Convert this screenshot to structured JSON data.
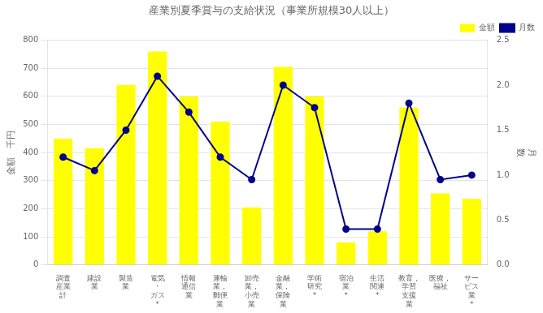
{
  "chart_data": {
    "type": "bar",
    "title": "産業別夏季賞与の支給状況（事業所規模30人以上）",
    "categories": [
      "調査\n産業\n計",
      "建設\n業",
      "製造\n業",
      "電気\n・\nガス\n*",
      "情報\n通信\n業",
      "運輸\n業，\n郵便\n業",
      "卸売\n業，\n小売\n業",
      "金融\n業，\n保険\n業",
      "学術\n研究\n*",
      "宿泊\n業\n*",
      "生活\n関連\n*",
      "教育，\n学習\n支援\n業",
      "医療，\n福祉",
      "サー\nビス\n業\n*"
    ],
    "series": [
      {
        "name": "金額",
        "type": "bar",
        "color": "#FFFF00",
        "values": [
          450,
          415,
          640,
          760,
          600,
          510,
          205,
          705,
          600,
          80,
          120,
          560,
          255,
          235
        ]
      },
      {
        "name": "月数",
        "type": "line",
        "axis": "y2",
        "color": "#00008B",
        "marker": "circle",
        "line_style": "solid",
        "values": [
          1.2,
          1.05,
          1.5,
          2.1,
          1.7,
          1.2,
          0.95,
          2.0,
          1.75,
          0.4,
          0.4,
          1.8,
          0.95,
          1.0
        ]
      }
    ],
    "ylabel": "金額　千円",
    "y2label": "月\n数",
    "ylim": [
      0,
      800
    ],
    "yticks": [
      0,
      100,
      200,
      300,
      400,
      500,
      600,
      700,
      800
    ],
    "y2lim": [
      0.0,
      2.5
    ],
    "y2ticks": [
      {
        "value": 0,
        "label": "0.0"
      },
      0.5,
      {
        "value": 1,
        "label": "1.0"
      },
      1.5,
      {
        "value": 2,
        "label": "2.0"
      },
      2.5
    ],
    "grid": true,
    "legend": "upper right"
  }
}
